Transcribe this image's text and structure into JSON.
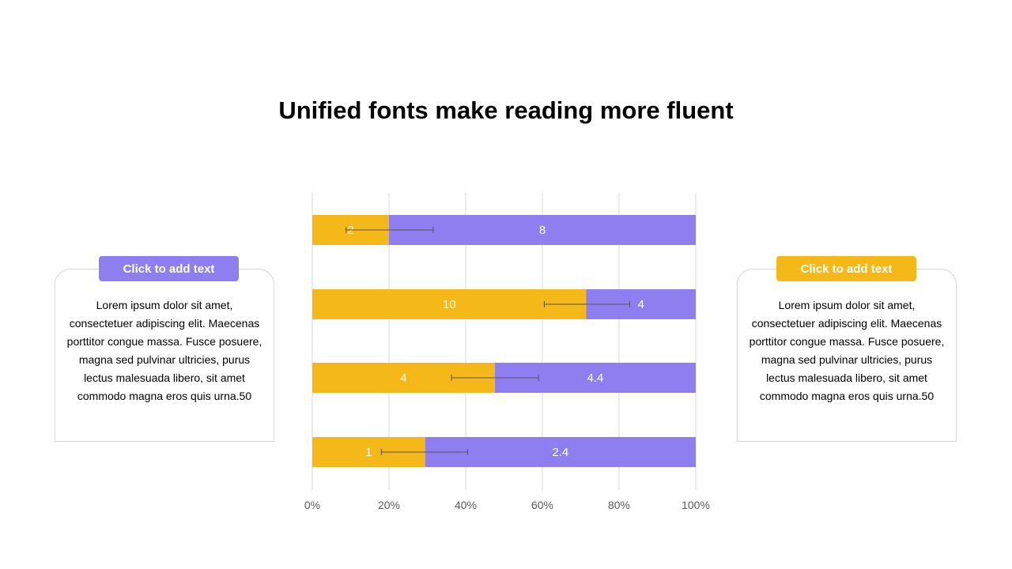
{
  "title": "Unified fonts make reading more fluent",
  "colors": {
    "series_a": "#F5B819",
    "series_b": "#8F7EF0",
    "grid": "#d9d9d9",
    "axis_text": "#595959"
  },
  "left_card": {
    "tag": "Click to add text",
    "body": "Lorem ipsum dolor sit amet, consectetuer adipiscing elit. Maecenas porttitor congue massa. Fusce posuere, magna sed pulvinar ultricies, purus lectus malesuada libero, sit amet commodo magna eros quis urna.50"
  },
  "right_card": {
    "tag": "Click to add text",
    "body": "Lorem ipsum dolor sit amet, consectetuer adipiscing elit. Maecenas porttitor congue massa. Fusce posuere, magna sed pulvinar ultricies, purus lectus malesuada libero, sit amet commodo magna eros quis urna.50"
  },
  "chart_data": {
    "type": "bar",
    "orientation": "horizontal",
    "stacking": "percent",
    "x_ticks": [
      "0%",
      "20%",
      "40%",
      "60%",
      "80%",
      "100%"
    ],
    "xlim": [
      0,
      100
    ],
    "grid": "vertical",
    "legend": "none",
    "series": [
      {
        "values": [
          2,
          10,
          4,
          1
        ],
        "labels": [
          "2",
          "10",
          "4",
          "1"
        ]
      },
      {
        "values": [
          8,
          4,
          4.4,
          2.4
        ],
        "labels": [
          "8",
          "4",
          "4.4",
          "2.4"
        ]
      }
    ],
    "error_bars": [
      {
        "center": 20,
        "low": 8.8,
        "high": 31.5
      },
      {
        "center": 71.5,
        "low": 60.5,
        "high": 82.8
      },
      {
        "center": 47.6,
        "low": 36.3,
        "high": 59
      },
      {
        "center": 29.4,
        "low": 18,
        "high": 40.5
      }
    ]
  }
}
